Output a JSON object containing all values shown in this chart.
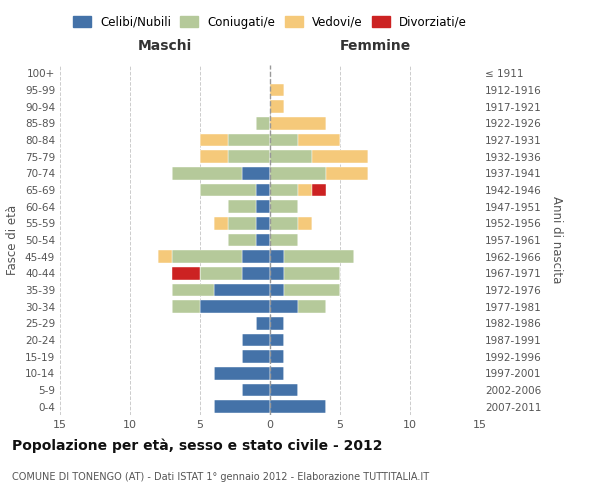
{
  "age_groups": [
    "100+",
    "95-99",
    "90-94",
    "85-89",
    "80-84",
    "75-79",
    "70-74",
    "65-69",
    "60-64",
    "55-59",
    "50-54",
    "45-49",
    "40-44",
    "35-39",
    "30-34",
    "25-29",
    "20-24",
    "15-19",
    "10-14",
    "5-9",
    "0-4"
  ],
  "birth_years": [
    "≤ 1911",
    "1912-1916",
    "1917-1921",
    "1922-1926",
    "1927-1931",
    "1932-1936",
    "1937-1941",
    "1942-1946",
    "1947-1951",
    "1952-1956",
    "1957-1961",
    "1962-1966",
    "1967-1971",
    "1972-1976",
    "1977-1981",
    "1982-1986",
    "1987-1991",
    "1992-1996",
    "1997-2001",
    "2002-2006",
    "2007-2011"
  ],
  "male": {
    "celibi": [
      0,
      0,
      0,
      0,
      0,
      0,
      2,
      1,
      1,
      1,
      1,
      2,
      2,
      4,
      5,
      1,
      2,
      2,
      4,
      2,
      4
    ],
    "coniugati": [
      0,
      0,
      0,
      1,
      3,
      3,
      5,
      4,
      2,
      2,
      2,
      5,
      3,
      3,
      2,
      0,
      0,
      0,
      0,
      0,
      0
    ],
    "vedovi": [
      0,
      0,
      0,
      0,
      2,
      2,
      0,
      0,
      0,
      1,
      0,
      1,
      0,
      0,
      0,
      0,
      0,
      0,
      0,
      0,
      0
    ],
    "divorziati": [
      0,
      0,
      0,
      0,
      0,
      0,
      0,
      0,
      0,
      0,
      0,
      0,
      2,
      0,
      0,
      0,
      0,
      0,
      0,
      0,
      0
    ]
  },
  "female": {
    "nubili": [
      0,
      0,
      0,
      0,
      0,
      0,
      0,
      0,
      0,
      0,
      0,
      1,
      1,
      1,
      2,
      1,
      1,
      1,
      1,
      2,
      4
    ],
    "coniugate": [
      0,
      0,
      0,
      0,
      2,
      3,
      4,
      2,
      2,
      2,
      2,
      5,
      4,
      4,
      2,
      0,
      0,
      0,
      0,
      0,
      0
    ],
    "vedove": [
      0,
      1,
      1,
      4,
      3,
      4,
      3,
      1,
      0,
      1,
      0,
      0,
      0,
      0,
      0,
      0,
      0,
      0,
      0,
      0,
      0
    ],
    "divorziate": [
      0,
      0,
      0,
      0,
      0,
      0,
      0,
      1,
      0,
      0,
      0,
      0,
      0,
      0,
      0,
      0,
      0,
      0,
      0,
      0,
      0
    ]
  },
  "colors": {
    "celibi": "#4472a8",
    "coniugati": "#b5c99a",
    "vedovi": "#f5c97a",
    "divorziati": "#cc2222"
  },
  "xlim": 15,
  "title": "Popolazione per età, sesso e stato civile - 2012",
  "subtitle": "COMUNE DI TONENGO (AT) - Dati ISTAT 1° gennaio 2012 - Elaborazione TUTTITALIA.IT",
  "ylabel_left": "Fasce di età",
  "ylabel_right": "Anni di nascita",
  "xlabel_male": "Maschi",
  "xlabel_female": "Femmine",
  "legend_labels": [
    "Celibi/Nubili",
    "Coniugati/e",
    "Vedovi/e",
    "Divorziati/e"
  ],
  "background_color": "#ffffff",
  "grid_color": "#cccccc"
}
